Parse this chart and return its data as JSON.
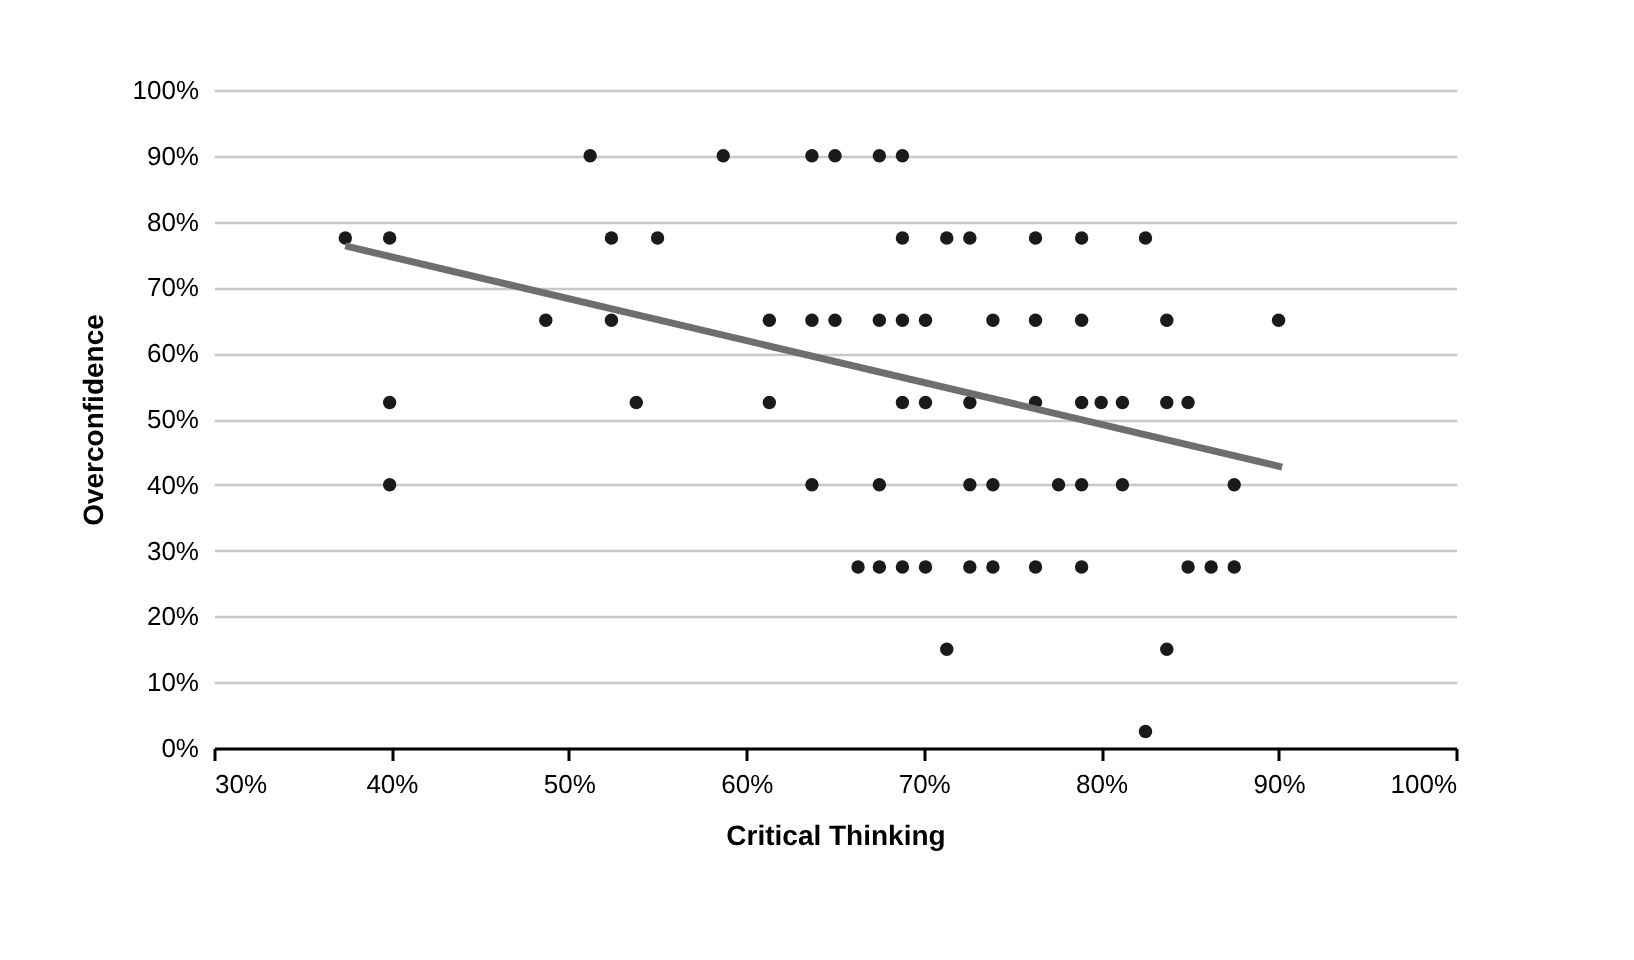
{
  "chart_data": {
    "type": "scatter",
    "xlabel": "Critical Thinking",
    "ylabel": "Overconfidence",
    "series": [
      {
        "type": "scatter",
        "color": "#1a1a1a",
        "marker": "circle",
        "x": [
          51.2,
          58.7,
          63.7,
          65.0,
          67.5,
          68.8,
          37.4,
          39.9,
          52.4,
          55.0,
          68.8,
          71.3,
          72.6,
          76.3,
          78.9,
          82.5,
          48.7,
          52.4,
          61.3,
          63.7,
          65.0,
          67.5,
          68.8,
          70.1,
          73.9,
          76.3,
          78.9,
          83.7,
          90.0,
          39.9,
          53.8,
          61.3,
          68.8,
          70.1,
          72.6,
          76.3,
          78.9,
          80.0,
          81.2,
          83.7,
          84.9,
          39.9,
          63.7,
          67.5,
          72.6,
          73.9,
          77.6,
          78.9,
          81.2,
          87.5,
          66.3,
          67.5,
          68.8,
          70.1,
          72.6,
          73.9,
          76.3,
          78.9,
          84.9,
          86.2,
          87.5,
          71.3,
          83.7,
          82.5
        ],
        "values": [
          90,
          90,
          90,
          90,
          90,
          90,
          77.5,
          77.5,
          77.5,
          77.5,
          77.5,
          77.5,
          77.5,
          77.5,
          77.5,
          77.5,
          65,
          65,
          65,
          65,
          65,
          65,
          65,
          65,
          65,
          65,
          65,
          65,
          65,
          52.5,
          52.5,
          52.5,
          52.5,
          52.5,
          52.5,
          52.5,
          52.5,
          52.5,
          52.5,
          52.5,
          52.5,
          40,
          40,
          40,
          40,
          40,
          40,
          40,
          40,
          40,
          27.5,
          27.5,
          27.5,
          27.5,
          27.5,
          27.5,
          27.5,
          27.5,
          27.5,
          27.5,
          27.5,
          15,
          15,
          2.5
        ]
      },
      {
        "type": "line",
        "color": "#6e6e6e",
        "x": [
          37.4,
          90.2
        ],
        "values": [
          76.3,
          42.7
        ]
      }
    ],
    "xlim": [
      30,
      100
    ],
    "xticks": [
      {
        "value": 30,
        "label": "30%"
      },
      {
        "value": 40,
        "label": "40%"
      },
      {
        "value": 50,
        "label": "50%"
      },
      {
        "value": 60,
        "label": "60%"
      },
      {
        "value": 70,
        "label": "70%"
      },
      {
        "value": 80,
        "label": "80%"
      },
      {
        "value": 90,
        "label": "90%"
      },
      {
        "value": 100,
        "label": "100%"
      }
    ],
    "ylim": [
      0,
      100
    ],
    "yticks": [
      {
        "value": 0,
        "label": "0%"
      },
      {
        "value": 10,
        "label": "10%"
      },
      {
        "value": 20,
        "label": "20%"
      },
      {
        "value": 30,
        "label": "30%"
      },
      {
        "value": 40,
        "label": "40%"
      },
      {
        "value": 50,
        "label": "50%"
      },
      {
        "value": 60,
        "label": "60%"
      },
      {
        "value": 70,
        "label": "70%"
      },
      {
        "value": 80,
        "label": "80%"
      },
      {
        "value": 90,
        "label": "90%"
      },
      {
        "value": 100,
        "label": "100%"
      }
    ],
    "grid": "y",
    "legend": false
  }
}
